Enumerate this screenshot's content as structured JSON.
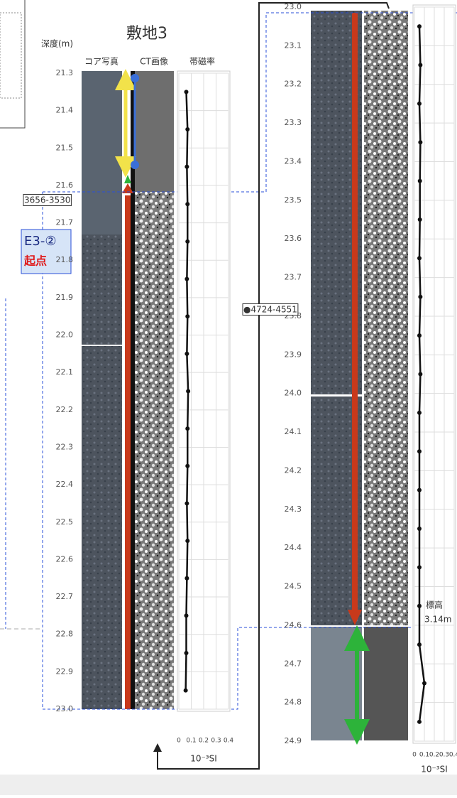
{
  "chart_data": [
    {
      "type": "line",
      "title": "敷地3",
      "y_label": "深度(m)",
      "column_headers": [
        "コア写真",
        "CT画像",
        "帯磁率"
      ],
      "ylim": [
        21.3,
        23.0
      ],
      "yticks": [
        21.3,
        21.4,
        21.5,
        21.6,
        21.7,
        21.8,
        21.9,
        {
          "value": 22.0,
          "label": "22.0"
        },
        22.1,
        22.2,
        22.3,
        22.4,
        22.5,
        22.6,
        22.7,
        22.8,
        22.9,
        {
          "value": 23.0,
          "label": "23.0"
        }
      ],
      "xlim": [
        0,
        0.4
      ],
      "xticks": [
        0,
        0.1,
        0.2,
        0.3,
        0.4
      ],
      "x_label": "10⁻³SI",
      "color": "#111111",
      "depth": [
        21.35,
        21.45,
        21.55,
        21.65,
        21.75,
        21.85,
        21.95,
        22.05,
        22.15,
        22.25,
        22.35,
        22.45,
        22.55,
        22.65,
        22.75,
        22.85,
        22.95
      ],
      "values": [
        0.06,
        0.07,
        0.065,
        0.07,
        0.07,
        0.065,
        0.07,
        0.065,
        0.075,
        0.07,
        0.07,
        0.065,
        0.07,
        0.065,
        0.06,
        0.06,
        0.055
      ],
      "annotations": [
        "3656-3530",
        "E3-②",
        "起点"
      ]
    },
    {
      "type": "line",
      "ylim": [
        23.0,
        24.9
      ],
      "yticks": [
        {
          "value": 23.0,
          "label": "23.0"
        },
        23.1,
        23.2,
        23.3,
        23.4,
        23.5,
        23.6,
        23.7,
        23.8,
        23.9,
        {
          "value": 24.0,
          "label": "24.0"
        },
        24.1,
        24.2,
        24.3,
        24.4,
        24.5,
        24.6,
        24.7,
        24.8,
        24.9
      ],
      "xlim": [
        0,
        0.4
      ],
      "xticks": [
        0,
        0.1,
        0.2,
        0.3,
        0.4
      ],
      "x_label": "10⁻³SI",
      "color": "#111111",
      "depth": [
        23.05,
        23.15,
        23.25,
        23.35,
        23.45,
        23.55,
        23.65,
        23.75,
        23.85,
        23.95,
        24.05,
        24.15,
        24.25,
        24.35,
        24.45,
        24.55,
        24.65,
        24.75,
        24.85
      ],
      "values": [
        0.05,
        0.06,
        0.05,
        0.06,
        0.055,
        0.055,
        0.05,
        0.06,
        0.05,
        0.06,
        0.05,
        0.05,
        0.05,
        0.05,
        0.05,
        0.05,
        0.05,
        0.1,
        0.05
      ],
      "annotations": [
        "●4724-4551",
        "標高",
        "3.14m"
      ]
    }
  ]
}
